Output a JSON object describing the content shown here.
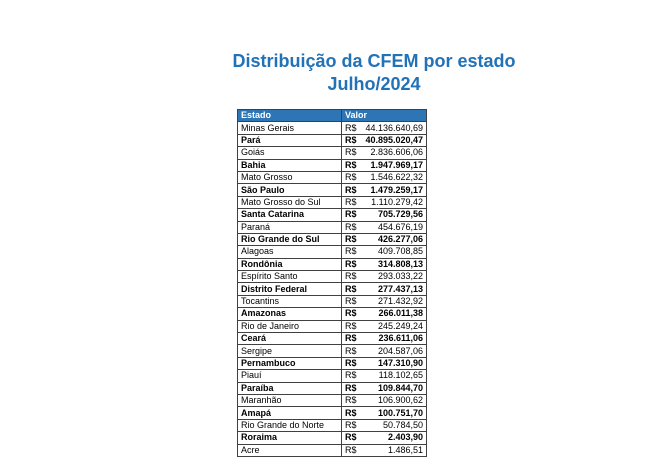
{
  "colors": {
    "title_text": "#2272B8",
    "header_bg": "#2E75B6",
    "header_text": "#FFFFFF",
    "border": "#404040"
  },
  "chart_data": {
    "type": "table",
    "title": "Distribuição da CFEM por estado",
    "subtitle": "Julho/2024",
    "columns": [
      "Estado",
      "Valor"
    ],
    "currency_prefix": "R$",
    "rows": [
      {
        "estado": "Minas Gerais",
        "valor": "44.136.640,69",
        "valor_num": 44136640.69,
        "bold": false
      },
      {
        "estado": "Pará",
        "valor": "40.895.020,47",
        "valor_num": 40895020.47,
        "bold": true
      },
      {
        "estado": "Goiás",
        "valor": "2.836.606,06",
        "valor_num": 2836606.06,
        "bold": false
      },
      {
        "estado": "Bahia",
        "valor": "1.947.969,17",
        "valor_num": 1947969.17,
        "bold": true
      },
      {
        "estado": "Mato Grosso",
        "valor": "1.546.622,32",
        "valor_num": 1546622.32,
        "bold": false
      },
      {
        "estado": "São Paulo",
        "valor": "1.479.259,17",
        "valor_num": 1479259.17,
        "bold": true
      },
      {
        "estado": "Mato Grosso do Sul",
        "valor": "1.110.279,42",
        "valor_num": 1110279.42,
        "bold": false
      },
      {
        "estado": "Santa Catarina",
        "valor": "705.729,56",
        "valor_num": 705729.56,
        "bold": true
      },
      {
        "estado": "Paraná",
        "valor": "454.676,19",
        "valor_num": 454676.19,
        "bold": false
      },
      {
        "estado": "Rio Grande do Sul",
        "valor": "426.277,06",
        "valor_num": 426277.06,
        "bold": true
      },
      {
        "estado": "Alagoas",
        "valor": "409.708,85",
        "valor_num": 409708.85,
        "bold": false
      },
      {
        "estado": "Rondônia",
        "valor": "314.808,13",
        "valor_num": 314808.13,
        "bold": true
      },
      {
        "estado": "Espírito Santo",
        "valor": "293.033,22",
        "valor_num": 293033.22,
        "bold": false
      },
      {
        "estado": "Distrito Federal",
        "valor": "277.437,13",
        "valor_num": 277437.13,
        "bold": true
      },
      {
        "estado": "Tocantins",
        "valor": "271.432,92",
        "valor_num": 271432.92,
        "bold": false
      },
      {
        "estado": "Amazonas",
        "valor": "266.011,38",
        "valor_num": 266011.38,
        "bold": true
      },
      {
        "estado": "Rio de Janeiro",
        "valor": "245.249,24",
        "valor_num": 245249.24,
        "bold": false
      },
      {
        "estado": "Ceará",
        "valor": "236.611,06",
        "valor_num": 236611.06,
        "bold": true
      },
      {
        "estado": "Sergipe",
        "valor": "204.587,06",
        "valor_num": 204587.06,
        "bold": false
      },
      {
        "estado": "Pernambuco",
        "valor": "147.310,90",
        "valor_num": 147310.9,
        "bold": true
      },
      {
        "estado": "Piauí",
        "valor": "118.102,65",
        "valor_num": 118102.65,
        "bold": false
      },
      {
        "estado": "Paraíba",
        "valor": "109.844,70",
        "valor_num": 109844.7,
        "bold": true
      },
      {
        "estado": "Maranhão",
        "valor": "106.900,62",
        "valor_num": 106900.62,
        "bold": false
      },
      {
        "estado": "Amapá",
        "valor": "100.751,70",
        "valor_num": 100751.7,
        "bold": true
      },
      {
        "estado": "Rio Grande do Norte",
        "valor": "50.784,50",
        "valor_num": 50784.5,
        "bold": false
      },
      {
        "estado": "Roraima",
        "valor": "2.403,90",
        "valor_num": 2403.9,
        "bold": true
      },
      {
        "estado": "Acre",
        "valor": "1.486,51",
        "valor_num": 1486.51,
        "bold": false
      }
    ]
  }
}
